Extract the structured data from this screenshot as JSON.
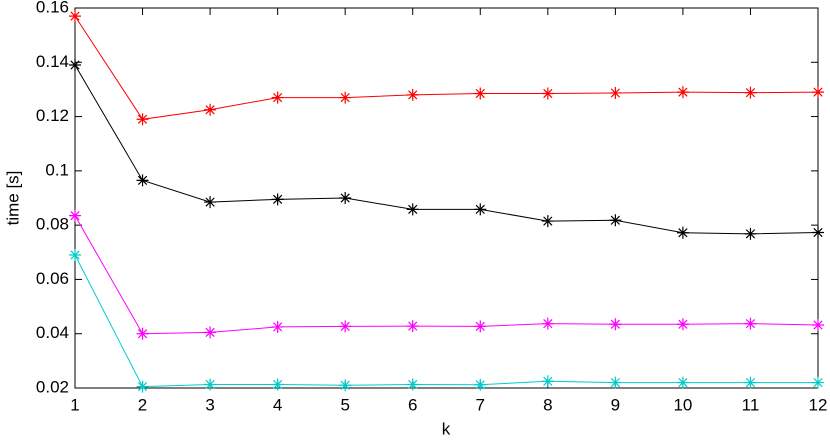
{
  "chart_data": {
    "type": "line",
    "xlabel": "k",
    "ylabel": "time [s]",
    "x": [
      1,
      2,
      3,
      4,
      5,
      6,
      7,
      8,
      9,
      10,
      11,
      12
    ],
    "series": [
      {
        "color": "#ff0000",
        "values": [
          0.157,
          0.119,
          0.1225,
          0.127,
          0.127,
          0.128,
          0.1285,
          0.1285,
          0.1287,
          0.129,
          0.1288,
          0.129
        ]
      },
      {
        "color": "#000000",
        "values": [
          0.139,
          0.0965,
          0.0885,
          0.0895,
          0.09,
          0.0858,
          0.0858,
          0.0815,
          0.0818,
          0.0772,
          0.0768,
          0.0773
        ]
      },
      {
        "color": "#ff00ff",
        "values": [
          0.0835,
          0.04,
          0.0405,
          0.0425,
          0.0427,
          0.0428,
          0.0427,
          0.0437,
          0.0435,
          0.0435,
          0.0437,
          0.0432
        ]
      },
      {
        "color": "#00cccc",
        "values": [
          0.069,
          0.0205,
          0.0213,
          0.0213,
          0.021,
          0.0213,
          0.0212,
          0.0225,
          0.022,
          0.022,
          0.022,
          0.022
        ]
      }
    ],
    "xlim": [
      1,
      12
    ],
    "ylim": [
      0.02,
      0.16
    ],
    "xticks": [
      1,
      2,
      3,
      4,
      5,
      6,
      7,
      8,
      9,
      10,
      11,
      12
    ],
    "yticks": [
      0.02,
      0.04,
      0.06,
      0.08,
      0.1,
      0.12,
      0.14,
      0.16
    ],
    "grid": false,
    "marker": "asterisk"
  }
}
